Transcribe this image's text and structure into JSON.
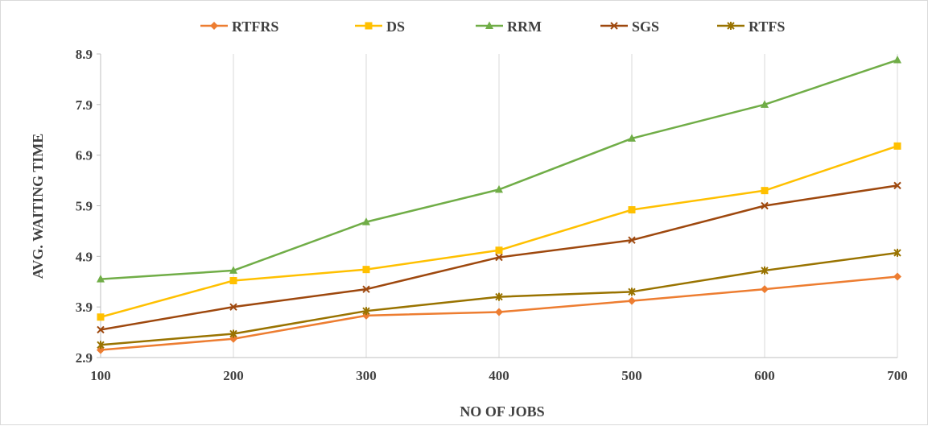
{
  "chart_data": {
    "type": "line",
    "title": "",
    "xlabel": "NO OF JOBS",
    "ylabel": "AVG. WAITING TIME",
    "x": [
      100,
      200,
      300,
      400,
      500,
      600,
      700
    ],
    "xlim": [
      100,
      700
    ],
    "ylim": [
      2.9,
      8.9
    ],
    "yticks": [
      "2.9",
      "3.9",
      "4.9",
      "5.9",
      "6.9",
      "7.9",
      "8.9"
    ],
    "xticks": [
      "100",
      "200",
      "300",
      "400",
      "500",
      "600",
      "700"
    ],
    "grid": "vertical",
    "legend": "top",
    "series": [
      {
        "name": "RTFRS",
        "color": "#ED7D31",
        "marker": "diamond",
        "values": [
          3.05,
          3.27,
          3.73,
          3.8,
          4.02,
          4.25,
          4.5
        ]
      },
      {
        "name": "DS",
        "color": "#FFC000",
        "marker": "square",
        "values": [
          3.7,
          4.42,
          4.64,
          5.02,
          5.82,
          6.2,
          7.08
        ]
      },
      {
        "name": "RRM",
        "color": "#70AD47",
        "marker": "triangle",
        "values": [
          4.45,
          4.62,
          5.58,
          6.22,
          7.23,
          7.9,
          8.78
        ]
      },
      {
        "name": "SGS",
        "color": "#9E480E",
        "marker": "x",
        "values": [
          3.45,
          3.9,
          4.25,
          4.88,
          5.22,
          5.9,
          6.3
        ]
      },
      {
        "name": "RTFS",
        "color": "#997300",
        "marker": "star",
        "values": [
          3.15,
          3.37,
          3.82,
          4.1,
          4.2,
          4.62,
          4.97
        ]
      }
    ]
  }
}
